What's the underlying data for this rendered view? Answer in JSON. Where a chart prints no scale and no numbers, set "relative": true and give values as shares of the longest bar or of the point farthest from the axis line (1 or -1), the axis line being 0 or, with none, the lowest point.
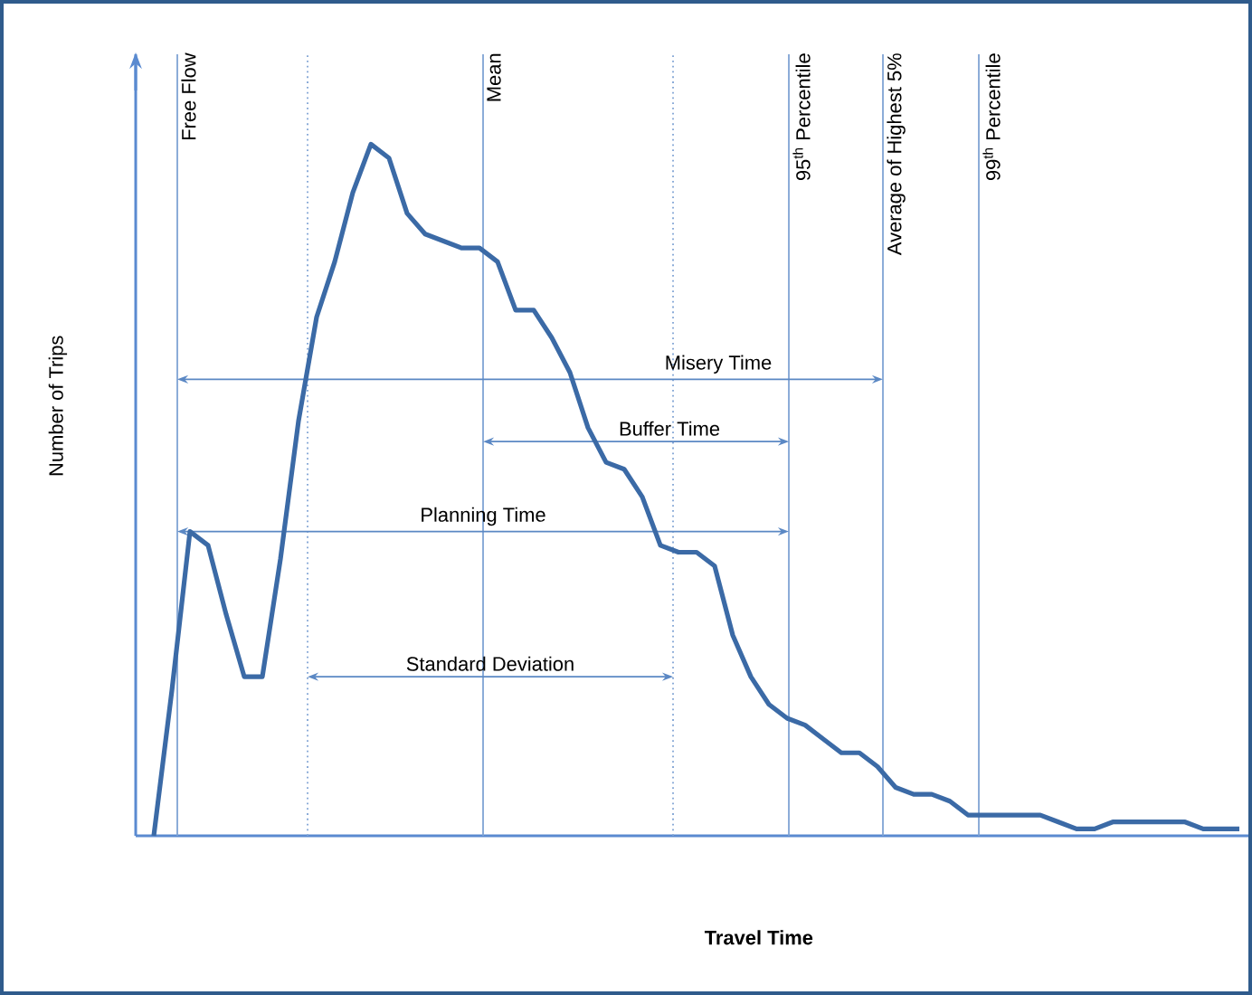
{
  "chart_data": {
    "type": "line",
    "xlabel": "Travel Time",
    "ylabel": "Number of Trips",
    "relative": true,
    "tick_labels": false,
    "color": "#3b6aa6",
    "categories": [
      null,
      null,
      null,
      null,
      null,
      null,
      null,
      null,
      null,
      null,
      null,
      null,
      null,
      null,
      null,
      null,
      null,
      null,
      null,
      null,
      null,
      null,
      null,
      null,
      null,
      null,
      null,
      null,
      null,
      null,
      null,
      null,
      null,
      null,
      null,
      null,
      null,
      null,
      null,
      null,
      null,
      null,
      null,
      null,
      null,
      null,
      null,
      null,
      null,
      null,
      null,
      null,
      null,
      null,
      null,
      null,
      null,
      null,
      null,
      null,
      null
    ],
    "values": [
      0,
      0.21,
      0.44,
      0.42,
      0.32,
      0.23,
      0.23,
      0.4,
      0.6,
      0.75,
      0.83,
      0.93,
      1.0,
      0.98,
      0.9,
      0.87,
      0.86,
      0.85,
      0.85,
      0.83,
      0.76,
      0.76,
      0.72,
      0.67,
      0.59,
      0.54,
      0.53,
      0.49,
      0.42,
      0.41,
      0.41,
      0.39,
      0.29,
      0.23,
      0.19,
      0.17,
      0.16,
      0.14,
      0.12,
      0.12,
      0.1,
      0.07,
      0.06,
      0.06,
      0.05,
      0.03,
      0.03,
      0.03,
      0.03,
      0.03,
      0.02,
      0.01,
      0.01,
      0.02,
      0.02,
      0.02,
      0.02,
      0.02,
      0.01,
      0.01,
      0.01
    ],
    "annotations": [
      "Free Flow",
      "Mean",
      "95$^{th}$ Percentile",
      "Average of Highest 5%",
      "99$^{th}$ Percentile",
      "Misery Time",
      "Buffer Time",
      "Planning Time",
      "Standard Deviation"
    ]
  }
}
